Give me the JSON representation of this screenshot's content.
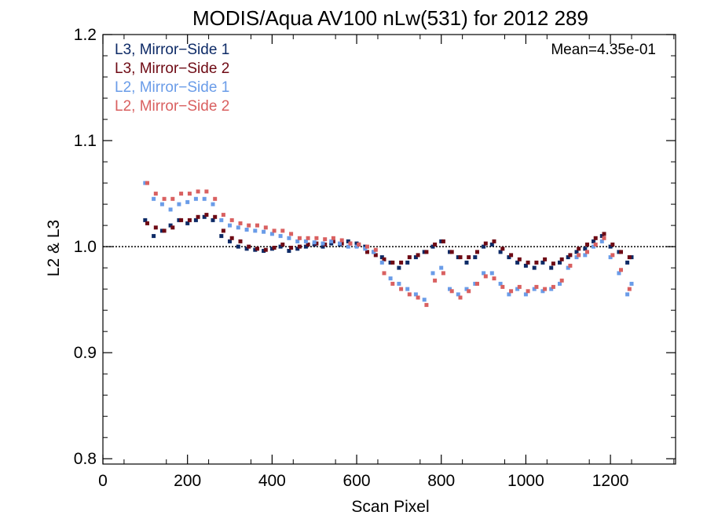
{
  "chart_data": {
    "type": "scatter",
    "title": "MODIS/Aqua AV100 nLw(531) for 2012 289",
    "xlabel": "Scan Pixel",
    "ylabel": "L2 & L3",
    "xlim": [
      0,
      1354
    ],
    "ylim": [
      0.795,
      1.2
    ],
    "xticks": [
      0,
      200,
      400,
      600,
      800,
      1000,
      1200
    ],
    "xtick_labels": [
      "0",
      "200",
      "400",
      "600",
      "800",
      "1000",
      "1200"
    ],
    "yticks": [
      0.8,
      0.9,
      1.0,
      1.1,
      1.2
    ],
    "ytick_labels": [
      "0.8",
      "0.9",
      "1.0",
      "1.1",
      "1.2"
    ],
    "reference_line": 1.0,
    "annotation": "Mean=4.35e-01",
    "annotation_color": "#d96060",
    "legend_position": "top-left",
    "series": [
      {
        "name": "L3, Mirror−Side 1",
        "color": "#0d2a66",
        "x": [
          100,
          120,
          140,
          160,
          180,
          200,
          220,
          240,
          260,
          280,
          300,
          320,
          340,
          360,
          380,
          400,
          420,
          440,
          460,
          480,
          500,
          520,
          540,
          560,
          580,
          600,
          620,
          640,
          660,
          680,
          700,
          720,
          740,
          760,
          780,
          800,
          820,
          840,
          860,
          880,
          900,
          920,
          940,
          960,
          980,
          1000,
          1020,
          1040,
          1060,
          1080,
          1100,
          1120,
          1140,
          1160,
          1180,
          1200,
          1220,
          1240,
          1250
        ],
        "y": [
          1.025,
          1.01,
          1.015,
          1.02,
          1.025,
          1.022,
          1.025,
          1.028,
          1.025,
          1.01,
          1.005,
          1.0,
          0.998,
          0.997,
          0.996,
          0.998,
          1.0,
          0.996,
          0.998,
          1.0,
          1.002,
          1.0,
          1.003,
          1.002,
          1.005,
          1.003,
          1.0,
          0.995,
          0.99,
          0.985,
          0.98,
          0.985,
          0.99,
          0.995,
          1.0,
          1.005,
          0.995,
          0.99,
          0.985,
          0.99,
          1.0,
          1.002,
          0.995,
          0.99,
          0.985,
          0.982,
          0.98,
          0.985,
          0.98,
          0.985,
          0.99,
          0.995,
          0.998,
          1.005,
          1.01,
          1.0,
          0.995,
          0.985,
          0.99
        ]
      },
      {
        "name": "L3, Mirror−Side 2",
        "color": "#6e0a14",
        "x": [
          105,
          125,
          145,
          165,
          185,
          205,
          225,
          245,
          265,
          285,
          305,
          325,
          345,
          365,
          385,
          405,
          425,
          445,
          465,
          485,
          505,
          525,
          545,
          565,
          585,
          605,
          625,
          645,
          665,
          685,
          705,
          725,
          745,
          765,
          785,
          805,
          825,
          845,
          865,
          885,
          905,
          925,
          945,
          965,
          985,
          1005,
          1025,
          1045,
          1065,
          1085,
          1105,
          1125,
          1145,
          1165,
          1185,
          1205,
          1225,
          1245
        ],
        "y": [
          1.022,
          1.018,
          1.015,
          1.018,
          1.025,
          1.025,
          1.028,
          1.03,
          1.028,
          1.015,
          1.008,
          1.005,
          1.0,
          0.998,
          0.997,
          0.999,
          1.002,
          0.999,
          1.0,
          1.002,
          1.003,
          1.002,
          1.005,
          1.003,
          1.003,
          1.002,
          0.995,
          0.992,
          0.988,
          0.985,
          0.985,
          0.99,
          0.992,
          0.995,
          1.002,
          1.005,
          0.995,
          0.99,
          0.99,
          0.995,
          1.003,
          1.005,
          0.998,
          0.992,
          0.988,
          0.985,
          0.985,
          0.988,
          0.984,
          0.988,
          0.992,
          0.998,
          1.002,
          1.008,
          1.012,
          1.002,
          0.995,
          0.99
        ]
      },
      {
        "name": "L2, Mirror−Side 1",
        "color": "#6a9ce8",
        "x": [
          100,
          120,
          140,
          160,
          180,
          200,
          220,
          240,
          260,
          280,
          300,
          320,
          340,
          360,
          380,
          400,
          420,
          440,
          460,
          480,
          500,
          520,
          540,
          560,
          580,
          600,
          620,
          640,
          660,
          680,
          700,
          720,
          740,
          760,
          780,
          800,
          820,
          840,
          860,
          880,
          900,
          920,
          940,
          960,
          980,
          1000,
          1020,
          1040,
          1060,
          1080,
          1100,
          1120,
          1140,
          1160,
          1180,
          1200,
          1220,
          1240,
          1250
        ],
        "y": [
          1.06,
          1.045,
          1.04,
          1.035,
          1.04,
          1.042,
          1.045,
          1.045,
          1.04,
          1.025,
          1.02,
          1.018,
          1.016,
          1.015,
          1.014,
          1.012,
          1.01,
          1.008,
          1.005,
          1.005,
          1.004,
          1.003,
          1.005,
          1.003,
          1.0,
          1.0,
          0.998,
          0.995,
          0.985,
          0.97,
          0.965,
          0.96,
          0.955,
          0.95,
          0.975,
          0.98,
          0.96,
          0.955,
          0.96,
          0.965,
          0.975,
          0.975,
          0.965,
          0.955,
          0.96,
          0.955,
          0.96,
          0.958,
          0.96,
          0.965,
          0.98,
          0.99,
          0.992,
          1.0,
          1.005,
          0.99,
          0.975,
          0.955,
          0.965
        ]
      },
      {
        "name": "L2, Mirror−Side 2",
        "color": "#d96060",
        "x": [
          105,
          125,
          145,
          165,
          185,
          205,
          225,
          245,
          265,
          285,
          305,
          325,
          345,
          365,
          385,
          405,
          425,
          445,
          465,
          485,
          505,
          525,
          545,
          565,
          585,
          605,
          625,
          645,
          665,
          685,
          705,
          725,
          745,
          765,
          785,
          805,
          825,
          845,
          865,
          885,
          905,
          925,
          945,
          965,
          985,
          1005,
          1025,
          1045,
          1065,
          1085,
          1105,
          1125,
          1145,
          1165,
          1185,
          1205,
          1225,
          1245
        ],
        "y": [
          1.06,
          1.05,
          1.045,
          1.045,
          1.05,
          1.05,
          1.052,
          1.052,
          1.045,
          1.03,
          1.025,
          1.022,
          1.02,
          1.02,
          1.018,
          1.015,
          1.015,
          1.012,
          1.008,
          1.008,
          1.008,
          1.007,
          1.008,
          1.006,
          1.003,
          1.002,
          1.0,
          0.997,
          0.975,
          0.965,
          0.96,
          0.955,
          0.952,
          0.945,
          0.968,
          0.975,
          0.958,
          0.952,
          0.958,
          0.965,
          0.972,
          0.97,
          0.962,
          0.958,
          0.962,
          0.958,
          0.962,
          0.96,
          0.962,
          0.968,
          0.982,
          0.992,
          0.995,
          1.002,
          1.008,
          0.992,
          0.978,
          0.96
        ]
      }
    ]
  }
}
